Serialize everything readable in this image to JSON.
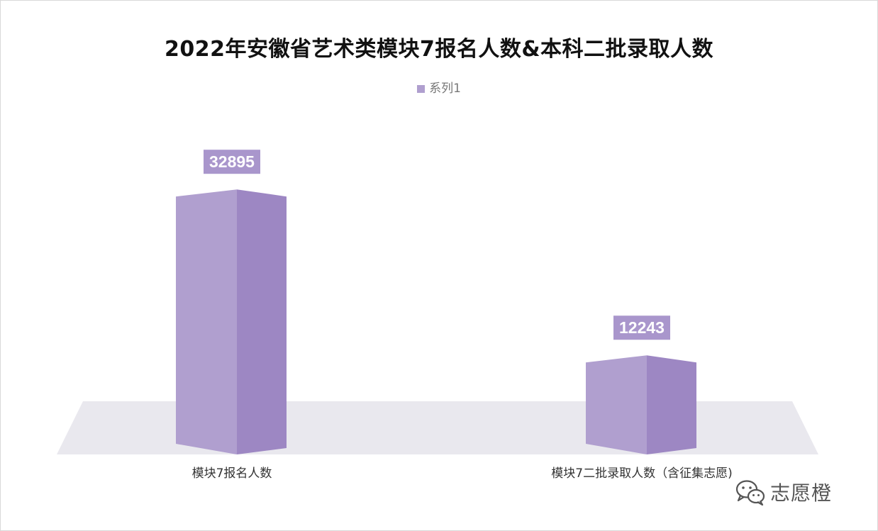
{
  "chart_data": {
    "type": "bar",
    "title": "2022年安徽省艺术类模块7报名人数&本科二批录取人数",
    "categories": [
      "模块7报名人数",
      "模块7二批录取人数（含征集志愿)"
    ],
    "series": [
      {
        "name": "系列1",
        "values": [
          32895,
          12243
        ]
      }
    ],
    "ylim": [
      0,
      45000
    ],
    "grid": false,
    "legend_position": "top-center",
    "style": "3d-column",
    "colors": {
      "bar_front": "#b09fcf",
      "bar_side": "#9d87c3",
      "bar_top": "#c7bbe0",
      "floor": "#e9e8ee",
      "label_bg": "#a996cc",
      "label_text": "#ffffff"
    }
  },
  "watermark": {
    "text": "志愿橙",
    "icon": "wechat-icon"
  }
}
